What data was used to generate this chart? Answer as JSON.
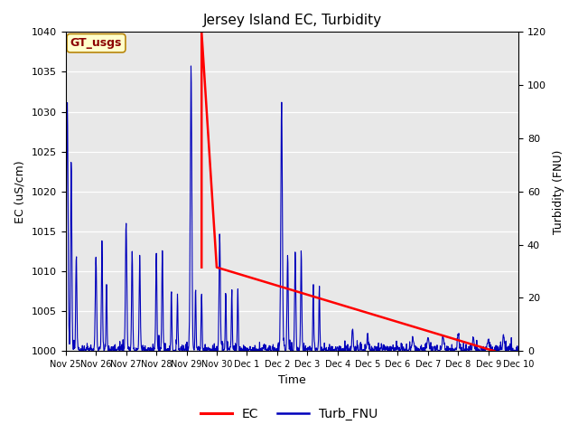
{
  "title": "Jersey Island EC, Turbidity",
  "xlabel": "Time",
  "ylabel_left": "EC (uS/cm)",
  "ylabel_right": "Turbidity (FNU)",
  "annotation": "GT_usgs",
  "ec_color": "#ff0000",
  "turb_color": "#0000bb",
  "background_color": "#e8e8e8",
  "ylim_left": [
    1000,
    1040
  ],
  "ylim_right": [
    0,
    120
  ],
  "yticks_left": [
    1000,
    1005,
    1010,
    1015,
    1020,
    1025,
    1030,
    1035,
    1040
  ],
  "yticks_right": [
    0,
    20,
    40,
    60,
    80,
    100,
    120
  ],
  "legend_labels": [
    "EC",
    "Turb_FNU"
  ],
  "x_tick_labels": [
    "Nov 25",
    "Nov 26",
    "Nov 27",
    "Nov 28",
    "Nov 29",
    "Nov 30",
    "Dec 1",
    "Dec 2",
    "Dec 3",
    "Dec 4",
    "Dec 5",
    "Dec 6",
    "Dec 7",
    "Dec 8",
    "Dec 9",
    "Dec 10"
  ],
  "ec_linewidth": 1.8,
  "turb_linewidth": 0.8,
  "figsize": [
    6.4,
    4.8
  ],
  "dpi": 100
}
